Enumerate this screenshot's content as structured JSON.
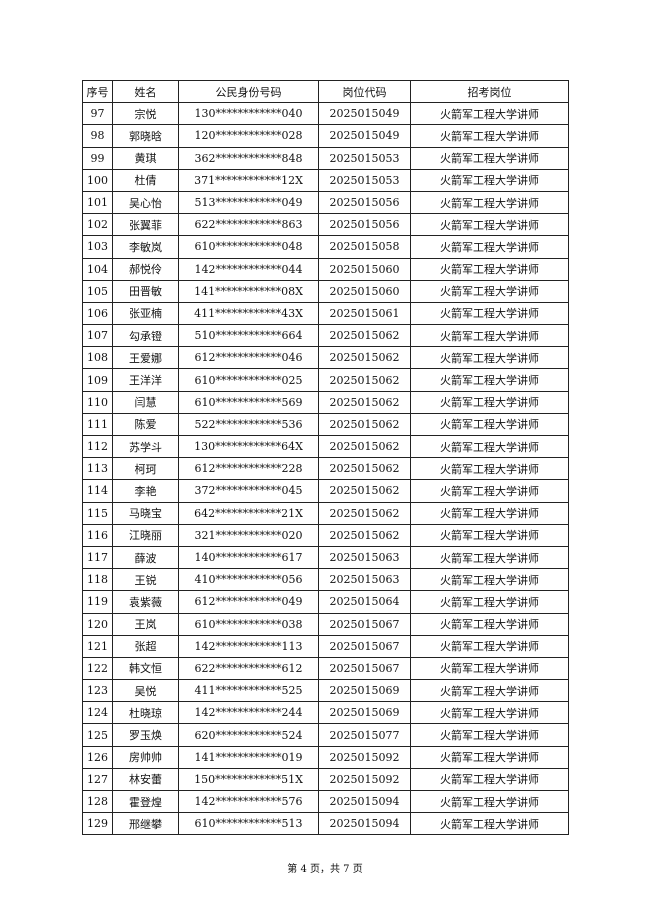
{
  "table": {
    "headers": [
      "序号",
      "姓名",
      "公民身份号码",
      "岗位代码",
      "招考岗位"
    ],
    "rows": [
      [
        "97",
        "宗悦",
        "130************040",
        "2025015049",
        "火箭军工程大学讲师"
      ],
      [
        "98",
        "郭晓晗",
        "120************028",
        "2025015049",
        "火箭军工程大学讲师"
      ],
      [
        "99",
        "黄琪",
        "362************848",
        "2025015053",
        "火箭军工程大学讲师"
      ],
      [
        "100",
        "杜倩",
        "371************12X",
        "2025015053",
        "火箭军工程大学讲师"
      ],
      [
        "101",
        "吴心怡",
        "513************049",
        "2025015056",
        "火箭军工程大学讲师"
      ],
      [
        "102",
        "张翼菲",
        "622************863",
        "2025015056",
        "火箭军工程大学讲师"
      ],
      [
        "103",
        "李敏岚",
        "610************048",
        "2025015058",
        "火箭军工程大学讲师"
      ],
      [
        "104",
        "郝悦伶",
        "142************044",
        "2025015060",
        "火箭军工程大学讲师"
      ],
      [
        "105",
        "田晋敏",
        "141************08X",
        "2025015060",
        "火箭军工程大学讲师"
      ],
      [
        "106",
        "张亚楠",
        "411************43X",
        "2025015061",
        "火箭军工程大学讲师"
      ],
      [
        "107",
        "勾承镫",
        "510************664",
        "2025015062",
        "火箭军工程大学讲师"
      ],
      [
        "108",
        "王爱娜",
        "612************046",
        "2025015062",
        "火箭军工程大学讲师"
      ],
      [
        "109",
        "王洋洋",
        "610************025",
        "2025015062",
        "火箭军工程大学讲师"
      ],
      [
        "110",
        "闫慧",
        "610************569",
        "2025015062",
        "火箭军工程大学讲师"
      ],
      [
        "111",
        "陈爱",
        "522************536",
        "2025015062",
        "火箭军工程大学讲师"
      ],
      [
        "112",
        "苏学斗",
        "130************64X",
        "2025015062",
        "火箭军工程大学讲师"
      ],
      [
        "113",
        "柯珂",
        "612************228",
        "2025015062",
        "火箭军工程大学讲师"
      ],
      [
        "114",
        "李艳",
        "372************045",
        "2025015062",
        "火箭军工程大学讲师"
      ],
      [
        "115",
        "马晓宝",
        "642************21X",
        "2025015062",
        "火箭军工程大学讲师"
      ],
      [
        "116",
        "江晓丽",
        "321************020",
        "2025015062",
        "火箭军工程大学讲师"
      ],
      [
        "117",
        "薛波",
        "140************617",
        "2025015063",
        "火箭军工程大学讲师"
      ],
      [
        "118",
        "王锐",
        "410************056",
        "2025015063",
        "火箭军工程大学讲师"
      ],
      [
        "119",
        "袁紫薇",
        "612************049",
        "2025015064",
        "火箭军工程大学讲师"
      ],
      [
        "120",
        "王岚",
        "610************038",
        "2025015067",
        "火箭军工程大学讲师"
      ],
      [
        "121",
        "张超",
        "142************113",
        "2025015067",
        "火箭军工程大学讲师"
      ],
      [
        "122",
        "韩文恒",
        "622************612",
        "2025015067",
        "火箭军工程大学讲师"
      ],
      [
        "123",
        "吴悦",
        "411************525",
        "2025015069",
        "火箭军工程大学讲师"
      ],
      [
        "124",
        "杜晓琼",
        "142************244",
        "2025015069",
        "火箭军工程大学讲师"
      ],
      [
        "125",
        "罗玉焕",
        "620************524",
        "2025015077",
        "火箭军工程大学讲师"
      ],
      [
        "126",
        "房帅帅",
        "141************019",
        "2025015092",
        "火箭军工程大学讲师"
      ],
      [
        "127",
        "林安蕾",
        "150************51X",
        "2025015092",
        "火箭军工程大学讲师"
      ],
      [
        "128",
        "霍登煌",
        "142************576",
        "2025015094",
        "火箭军工程大学讲师"
      ],
      [
        "129",
        "邢继攀",
        "610************513",
        "2025015094",
        "火箭军工程大学讲师"
      ]
    ]
  },
  "footer": {
    "page_text": "第 4 页，共 7 页"
  }
}
